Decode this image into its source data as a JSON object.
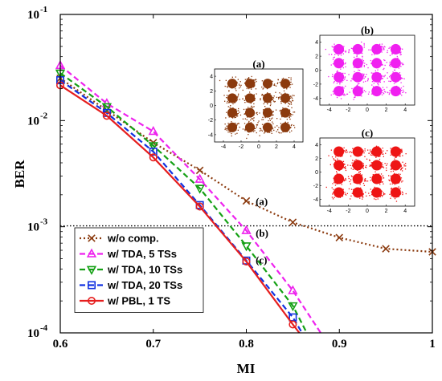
{
  "chart_data": {
    "type": "line",
    "xlabel": "MI",
    "ylabel": "BER",
    "xlim": [
      0.6,
      1.0
    ],
    "ylim": [
      0.0001,
      0.1
    ],
    "y_scale": "log",
    "x_ticks": [
      "0.6",
      "0.7",
      "0.8",
      "0.9",
      "1"
    ],
    "y_ticks": [
      {
        "base": "10",
        "exp": "-1",
        "value": 0.1
      },
      {
        "base": "10",
        "exp": "-2",
        "value": 0.01
      },
      {
        "base": "10",
        "exp": "-3",
        "value": 0.001
      },
      {
        "base": "10",
        "exp": "-4",
        "value": 0.0001
      }
    ],
    "threshold": {
      "y": 0.00102,
      "style": "dotted"
    },
    "legend_position": "bottom-left",
    "series": [
      {
        "name": "w/o comp.",
        "color": "#8B3A0E",
        "marker": "x",
        "dash": "dotted",
        "x": [
          0.6,
          0.65,
          0.7,
          0.75,
          0.8,
          0.85,
          0.9,
          0.95,
          1.0
        ],
        "y": [
          0.025,
          0.0125,
          0.0062,
          0.0034,
          0.00175,
          0.0011,
          0.00079,
          0.00062,
          0.00058
        ]
      },
      {
        "name": "w/ TDA, 5 TSs",
        "color": "#EE22EE",
        "marker": "triangle-up",
        "dash": "dashed",
        "x": [
          0.6,
          0.65,
          0.7,
          0.75,
          0.8,
          0.85,
          0.88
        ],
        "y": [
          0.033,
          0.0145,
          0.0079,
          0.0028,
          0.00092,
          0.00025,
          0.0001
        ]
      },
      {
        "name": "w/ TDA, 10 TSs",
        "color": "#14A014",
        "marker": "triangle-down",
        "dash": "dashed",
        "x": [
          0.6,
          0.65,
          0.7,
          0.75,
          0.8,
          0.85,
          0.865
        ],
        "y": [
          0.028,
          0.0135,
          0.0058,
          0.0023,
          0.00066,
          0.00018,
          0.0001
        ]
      },
      {
        "name": "w/ TDA, 20 TSs",
        "color": "#1030E0",
        "marker": "square",
        "dash": "dashed",
        "x": [
          0.6,
          0.65,
          0.7,
          0.75,
          0.8,
          0.85,
          0.86
        ],
        "y": [
          0.024,
          0.0118,
          0.0051,
          0.0016,
          0.00048,
          0.00014,
          0.0001
        ]
      },
      {
        "name": "w/ PBL, 1 TS",
        "color": "#E61E1E",
        "marker": "circle",
        "dash": "solid",
        "x": [
          0.6,
          0.65,
          0.7,
          0.75,
          0.8,
          0.85,
          0.857
        ],
        "y": [
          0.0215,
          0.0111,
          0.0045,
          0.00155,
          0.00047,
          0.00012,
          0.0001
        ]
      }
    ],
    "annotations": [
      {
        "text": "(a)",
        "x": 0.81,
        "y": 0.00175
      },
      {
        "text": "(b)",
        "x": 0.81,
        "y": 0.00088
      },
      {
        "text": "(c)",
        "x": 0.81,
        "y": 0.00049
      }
    ],
    "insets": [
      {
        "label": "(a)",
        "color": "#8B3A0E",
        "ticks": [
          "-4",
          "-2",
          "0",
          "2",
          "4"
        ],
        "spread": 0.42
      },
      {
        "label": "(b)",
        "color": "#F020F0",
        "ticks": [
          "-4",
          "-2",
          "0",
          "2",
          "4"
        ],
        "spread": 0.38
      },
      {
        "label": "(c)",
        "color": "#EE1515",
        "ticks": [
          "-4",
          "-2",
          "0",
          "2",
          "4"
        ],
        "spread": 0.4
      }
    ]
  }
}
